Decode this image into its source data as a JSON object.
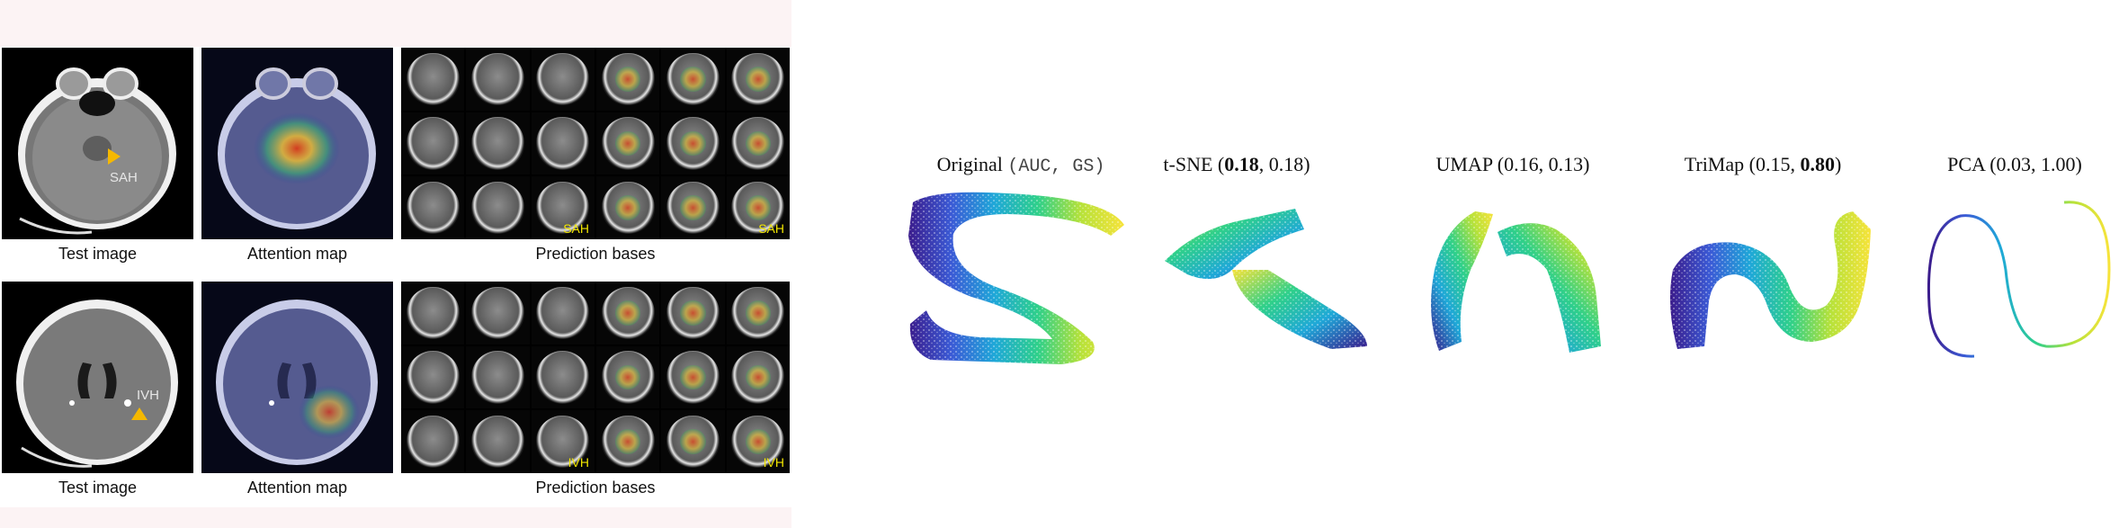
{
  "ct_figure": {
    "rows": [
      {
        "test_caption": "Test image",
        "lesion_label": "SAH",
        "attention_caption": "Attention map",
        "bases_caption": "Prediction bases",
        "bases_tags": [
          "SAH",
          "SAH"
        ]
      },
      {
        "test_caption": "Test image",
        "lesion_label": "IVH",
        "attention_caption": "Attention map",
        "bases_caption": "Prediction bases",
        "bases_tags": [
          "IVH",
          "IVH"
        ]
      }
    ],
    "arrow_color": "#f5b800"
  },
  "embeddings": {
    "panels": [
      {
        "method": "Original",
        "metric_label": "(AUC, GS)",
        "values": []
      },
      {
        "method": "t-SNE",
        "metric_label": "",
        "values": [
          "0.18",
          "0.18"
        ],
        "bold": [
          true,
          false
        ]
      },
      {
        "method": "UMAP",
        "metric_label": "",
        "values": [
          "0.16",
          "0.13"
        ],
        "bold": [
          false,
          false
        ]
      },
      {
        "method": "TriMap",
        "metric_label": "",
        "values": [
          "0.15",
          "0.80"
        ],
        "bold": [
          false,
          true
        ]
      },
      {
        "method": "PCA",
        "metric_label": "",
        "values": [
          "0.03",
          "1.00"
        ],
        "bold": [
          false,
          false
        ]
      }
    ],
    "colormap": [
      "#3b1c8c",
      "#3b5bd6",
      "#1fa8d8",
      "#2fd08a",
      "#b7e23a",
      "#f7e33a"
    ]
  }
}
